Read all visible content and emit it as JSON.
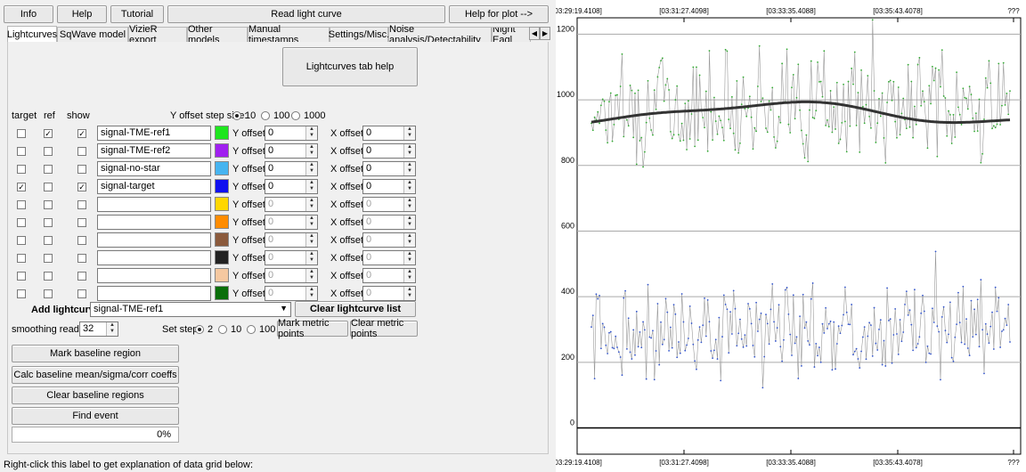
{
  "top_buttons": {
    "info": "Info",
    "help": "Help",
    "tutorial": "Tutorial",
    "read": "Read light curve",
    "help_plot": "Help for plot -->"
  },
  "tabs": [
    "Lightcurves",
    "SqWave model",
    "VizieR export",
    "Other models",
    "Manual timestamps",
    "Settings/Misc.",
    "Noise analysis/Detectability",
    "Night Eagl"
  ],
  "tab_help": "Lightcurves tab help",
  "headers": {
    "target": "target",
    "ref": "ref",
    "show": "show"
  },
  "y_offset_step": {
    "label": "Y offset step size:",
    "options": [
      "10",
      "100",
      "1000"
    ],
    "selected": "10"
  },
  "y_offset_label": "Y offset:",
  "x_offset_label": "X offset:",
  "rows": [
    {
      "name": "signal-TME-ref1",
      "color": "#1ee61e",
      "target": false,
      "ref": true,
      "show": true,
      "y": "0",
      "x": "0",
      "enabled": true
    },
    {
      "name": "signal-TME-ref2",
      "color": "#a020f0",
      "target": false,
      "ref": false,
      "show": false,
      "y": "0",
      "x": "0",
      "enabled": true
    },
    {
      "name": "signal-no-star",
      "color": "#46b4f0",
      "target": false,
      "ref": false,
      "show": false,
      "y": "0",
      "x": "0",
      "enabled": true
    },
    {
      "name": "signal-target",
      "color": "#1010f0",
      "target": true,
      "ref": false,
      "show": true,
      "y": "0",
      "x": "0",
      "enabled": true
    },
    {
      "name": "",
      "color": "#ffd700",
      "target": false,
      "ref": false,
      "show": false,
      "y": "0",
      "x": "0",
      "enabled": false
    },
    {
      "name": "",
      "color": "#ff8c00",
      "target": false,
      "ref": false,
      "show": false,
      "y": "0",
      "x": "0",
      "enabled": false
    },
    {
      "name": "",
      "color": "#8b5a3c",
      "target": false,
      "ref": false,
      "show": false,
      "y": "0",
      "x": "0",
      "enabled": false
    },
    {
      "name": "",
      "color": "#222222",
      "target": false,
      "ref": false,
      "show": false,
      "y": "0",
      "x": "0",
      "enabled": false
    },
    {
      "name": "",
      "color": "#f5c8a0",
      "target": false,
      "ref": false,
      "show": false,
      "y": "0",
      "x": "0",
      "enabled": false
    },
    {
      "name": "",
      "color": "#0a6e0a",
      "target": false,
      "ref": false,
      "show": false,
      "y": "0",
      "x": "0",
      "enabled": false
    }
  ],
  "add_lightcurve": {
    "label": "Add lightcurve",
    "selected": "signal-TME-ref1"
  },
  "clear_list": "Clear lightcurve list",
  "smoothing": {
    "label": "smoothing readings",
    "value": "32"
  },
  "set_step": {
    "label": "Set step:",
    "options": [
      "2",
      "10",
      "100"
    ],
    "selected": "2"
  },
  "mark_metric": "Mark metric points",
  "clear_metric": "Clear metric points",
  "baseline_buttons": [
    "Mark baseline region",
    "Calc baseline mean/sigma/corr coeffs",
    "Clear baseline regions",
    "Find event"
  ],
  "progress": {
    "text": "0%",
    "value": 0
  },
  "status_text": "Right-click this label to get explanation of data grid below:",
  "chart_data": {
    "type": "line",
    "title": "",
    "xlabel": "",
    "ylabel": "",
    "x_ticks": [
      "[03:29:19.4108]",
      "[03:31:27.4098]",
      "[03:33:35.4088]",
      "[03:35:43.4078]",
      "???"
    ],
    "y_ticks": [
      0,
      200,
      400,
      600,
      800,
      1000,
      1200
    ],
    "ylim": [
      -80,
      1250
    ],
    "grid": true,
    "series": [
      {
        "color": "#33aa33",
        "mean": 980,
        "amplitude": 140,
        "count": 260,
        "smooth_color": "#333333"
      },
      {
        "color": "#3355cc",
        "mean": 300,
        "amplitude": 130,
        "count": 260
      }
    ]
  }
}
